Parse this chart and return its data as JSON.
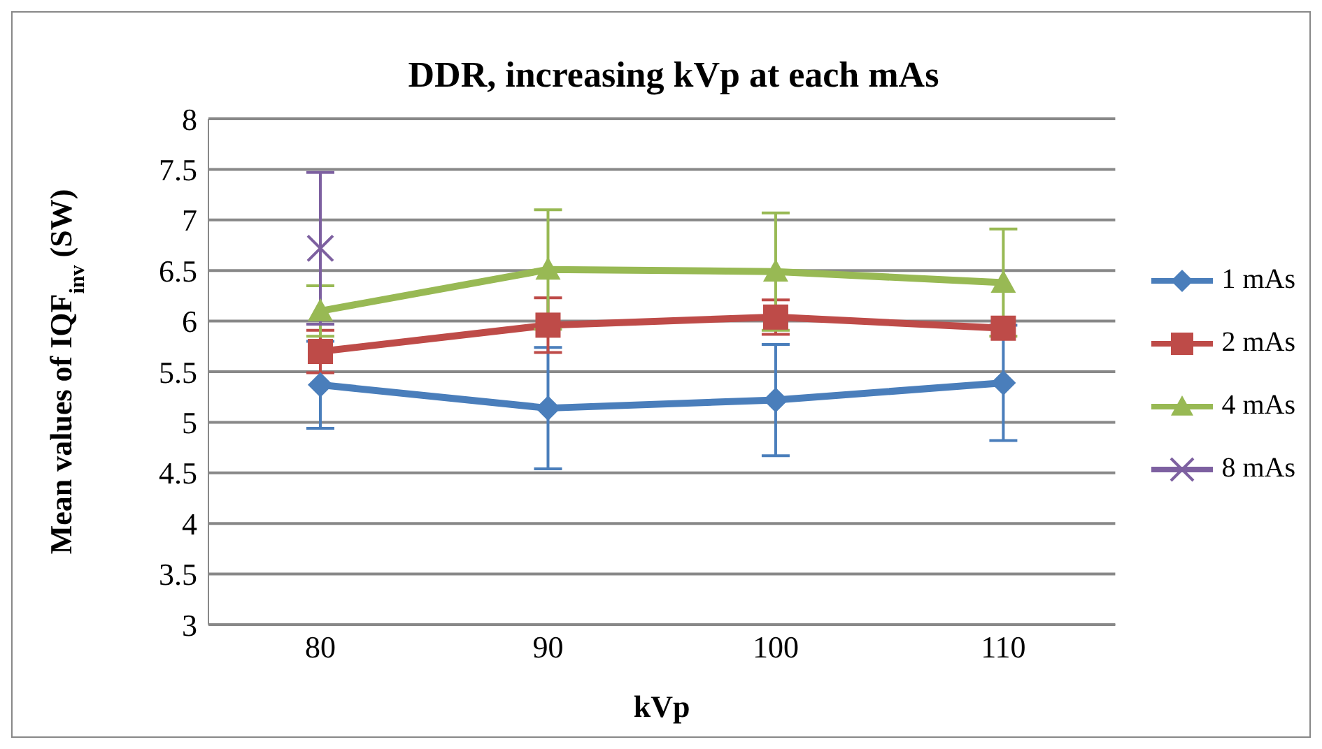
{
  "chart_data": {
    "type": "line",
    "title": "DDR, increasing kVp at each mAs",
    "xlabel": "kVp",
    "ylabel": "Mean values of IQF$_{inv}$ (SW)",
    "categories": [
      "80",
      "90",
      "100",
      "110"
    ],
    "series": [
      {
        "name": "1 mAs",
        "color": "#4a7ebb",
        "marker": "diamond",
        "values": [
          5.37,
          5.14,
          5.22,
          5.39
        ],
        "errors": [
          0.43,
          0.6,
          0.55,
          0.57
        ]
      },
      {
        "name": "2 mAs",
        "color": "#be4b48",
        "marker": "square",
        "values": [
          5.7,
          5.96,
          6.04,
          5.93
        ],
        "errors": [
          0.21,
          0.27,
          0.17,
          null
        ]
      },
      {
        "name": "4 mAs",
        "color": "#98b954",
        "marker": "triangle",
        "values": [
          6.1,
          6.51,
          6.49,
          6.38
        ],
        "errors": [
          0.25,
          0.59,
          0.58,
          0.53
        ]
      },
      {
        "name": "8 mAs",
        "color": "#7d60a0",
        "marker": "cross",
        "values": [
          6.72,
          null,
          null,
          null
        ],
        "errors": [
          0.75,
          null,
          null,
          null
        ]
      }
    ],
    "ylim": [
      3,
      8
    ],
    "yticks": [
      3,
      3.5,
      4,
      4.5,
      5,
      5.5,
      6,
      6.5,
      7,
      7.5,
      8
    ],
    "grid": "y",
    "legend": "right"
  }
}
